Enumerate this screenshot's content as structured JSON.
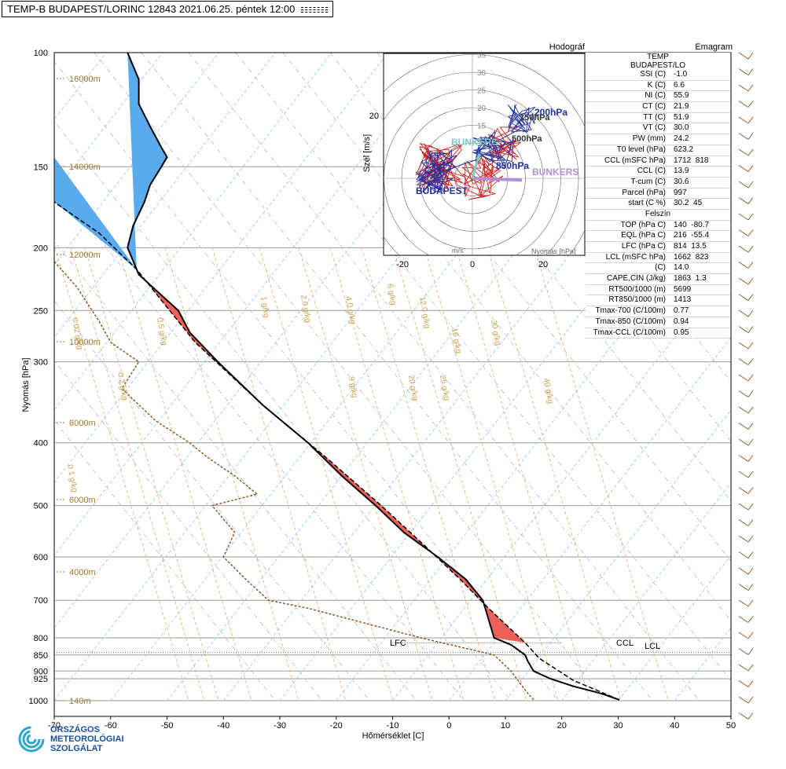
{
  "header": {
    "title": "TEMP-B BUDAPEST/LORINC 12843 2021.06.25. péntek 12:00"
  },
  "axes": {
    "x_title": "Hőmérséklet [C]",
    "y_title": "Nyomás [hPa]",
    "x_ticks": [
      "-70",
      "-60",
      "-50",
      "-40",
      "-30",
      "-20",
      "-10",
      "0",
      "10",
      "20",
      "30",
      "40",
      "50"
    ],
    "y_ticks": [
      "100",
      "150",
      "200",
      "250",
      "300",
      "400",
      "500",
      "600",
      "700",
      "800",
      "850",
      "900",
      "925",
      "1000"
    ]
  },
  "altitude_labels": [
    "16000m",
    "14000m",
    "12000m",
    "10000m",
    "8000m",
    "6000m",
    "4000m",
    "140m"
  ],
  "mixing_ratio_labels": [
    "0.02 g/kg",
    "0.1 g/kg",
    "0.2 g/kg",
    "0.5 g/kg",
    "1 g/kg",
    "2.0 g/kg",
    "4.0 g/kg",
    "6 g/kg",
    "9 g/kg",
    "12.0 g/kg",
    "16 g/kg",
    "20 g/kg",
    "25 g/kg",
    "30 g/kg",
    "40 g/kg"
  ],
  "level_labels": {
    "lfc": "LFC",
    "ccl": "CCL",
    "lcl": "LCL"
  },
  "hodograph": {
    "title": "Hodográf",
    "x_unit": "m/s",
    "y_title": "Szél [m/s]",
    "ring_labels": [
      "5",
      "10",
      "15",
      "20",
      "25",
      "30",
      "35"
    ],
    "x_ticks": [
      "-20",
      "0",
      "20"
    ],
    "y_tick": "20",
    "labels": {
      "budapest": "BUDAPEST",
      "bunkers_l": "BUNKERS",
      "bunkers_r": "BUNKERS",
      "h200": "200hPa",
      "h150": "150hPa",
      "h500": "500hPa",
      "h850": "850hPa",
      "ms": "m/s",
      "szel": "Szél",
      "nyomas": "Nyomás [hPa]",
      "tsp": "[m/s]"
    }
  },
  "emagram_label": "Emagram",
  "table": {
    "header1": "TEMP",
    "header2": "BUDAPEST/LO",
    "rows": [
      {
        "k": "SSI (C)",
        "v": "-1.0"
      },
      {
        "k": "K (C)",
        "v": "6.6"
      },
      {
        "k": "NI (C)",
        "v": "55.9"
      },
      {
        "k": "CT (C)",
        "v": "21.9"
      },
      {
        "k": "TT (C)",
        "v": "51.9"
      },
      {
        "k": "VT (C)",
        "v": "30.0"
      },
      {
        "k": "PW (mm)",
        "v": "24.2"
      },
      {
        "k": "T0 level (hPa)",
        "v": "623.2"
      },
      {
        "k": "CCL (mSFC hPa)",
        "v": "1712  818"
      },
      {
        "k": "CCL (C)",
        "v": "13.9"
      },
      {
        "k": "T-cum (C)",
        "v": "30.6"
      },
      {
        "k": "Parcel (hPa)",
        "v": "997"
      },
      {
        "k": "start (C %)",
        "v": "30.2  45"
      }
    ],
    "section": "Felszín",
    "rows2": [
      {
        "k": "TOP (hPa C)",
        "v": "140  -80.7"
      },
      {
        "k": "EQL (hPa C)",
        "v": "216  -55.4"
      },
      {
        "k": "LFC (hPa C)",
        "v": "814  13.5"
      },
      {
        "k": "LCL (mSFC hPa)",
        "v": "1662  823"
      },
      {
        "k": "(C)",
        "v": "14.0"
      },
      {
        "k": "CAPE,CIN (J/kg)",
        "v": "1863  1.3"
      },
      {
        "k": "RT500/1000 (m)",
        "v": "5699"
      },
      {
        "k": "RT850/1000 (m)",
        "v": "1413"
      },
      {
        "k": "Tmax-700 (C/100m)",
        "v": "0.77"
      },
      {
        "k": "Tmax-850 (C/100m)",
        "v": "0.94"
      },
      {
        "k": "Tmax-CCL (C/100m)",
        "v": "0.95"
      }
    ]
  },
  "logo": {
    "line1": "ORSZÁGOS",
    "line2": "METEOROLÓGIAI",
    "line3": "SZOLGÁLAT"
  },
  "colors": {
    "temp": "#000000",
    "dew": "#8b5a2b",
    "cape": "#f0605a",
    "cin": "#5aaaee",
    "hodo_red": "#d42020",
    "hodo_blue": "#2030a0",
    "bunkers": "#b090d0",
    "bunkers_l": "#80c8c8",
    "wind": "#8b5a2b"
  },
  "chart_data": {
    "type": "line",
    "title": "TEMP-B BUDAPEST/LORINC 12843 2021.06.25. péntek 12:00",
    "xlabel": "Hőmérséklet [C]",
    "ylabel": "Nyomás [hPa]",
    "xlim": [
      -70,
      50
    ],
    "ylim": [
      1000,
      100
    ],
    "y_scale": "log",
    "grid": true,
    "series": [
      {
        "name": "temperature",
        "points": [
          [
            30.2,
            997
          ],
          [
            27,
            975
          ],
          [
            22,
            950
          ],
          [
            18,
            925
          ],
          [
            15,
            900
          ],
          [
            14,
            870
          ],
          [
            13.5,
            850
          ],
          [
            11,
            820
          ],
          [
            8,
            800
          ],
          [
            6,
            700
          ],
          [
            3,
            650
          ],
          [
            -2,
            600
          ],
          [
            -8,
            550
          ],
          [
            -13,
            500
          ],
          [
            -19,
            450
          ],
          [
            -25,
            400
          ],
          [
            -33,
            350
          ],
          [
            -41,
            300
          ],
          [
            -46,
            270
          ],
          [
            -48,
            250
          ],
          [
            -55,
            220
          ],
          [
            -55.4,
            216
          ],
          [
            -57,
            200
          ],
          [
            -56,
            185
          ],
          [
            -54,
            170
          ],
          [
            -53,
            160
          ],
          [
            -51,
            150
          ],
          [
            -50,
            145
          ],
          [
            -51,
            140
          ],
          [
            -53,
            130
          ],
          [
            -55,
            120
          ],
          [
            -55,
            110
          ],
          [
            -57,
            100
          ]
        ]
      },
      {
        "name": "dewpoint",
        "points": [
          [
            15,
            997
          ],
          [
            14,
            975
          ],
          [
            13,
            950
          ],
          [
            12,
            925
          ],
          [
            11,
            900
          ],
          [
            8,
            850
          ],
          [
            -5,
            800
          ],
          [
            -25,
            720
          ],
          [
            -32,
            700
          ],
          [
            -36,
            650
          ],
          [
            -40,
            600
          ],
          [
            -38,
            550
          ],
          [
            -42,
            500
          ],
          [
            -34,
            480
          ],
          [
            -38,
            450
          ],
          [
            -43,
            420
          ],
          [
            -46,
            400
          ],
          [
            -52,
            370
          ],
          [
            -58,
            330
          ],
          [
            -55,
            300
          ],
          [
            -60,
            280
          ],
          [
            -62,
            260
          ],
          [
            -66,
            230
          ],
          [
            -70,
            210
          ]
        ]
      },
      {
        "name": "parcel",
        "points": [
          [
            30.2,
            997
          ],
          [
            22,
            930
          ],
          [
            16,
            860
          ],
          [
            14,
            823
          ],
          [
            13.5,
            814
          ],
          [
            7,
            720
          ],
          [
            2,
            650
          ],
          [
            -4,
            580
          ],
          [
            -12,
            500
          ],
          [
            -22,
            420
          ],
          [
            -33,
            350
          ],
          [
            -45,
            280
          ],
          [
            -55.4,
            216
          ],
          [
            -62,
            190
          ],
          [
            -70,
            170
          ]
        ]
      }
    ],
    "levels": {
      "lfc_hpa": 814,
      "lcl_hpa": 823,
      "ccl_hpa": 818,
      "eql_hpa": 216
    }
  }
}
